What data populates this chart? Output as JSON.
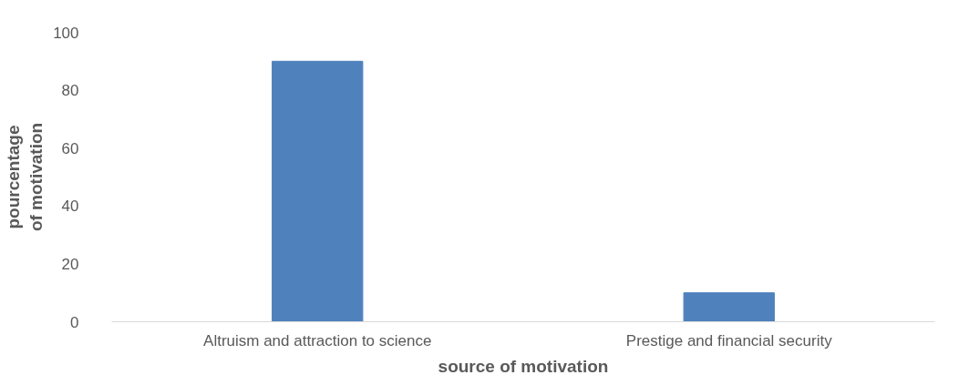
{
  "chart_data": {
    "type": "bar",
    "xlabel": "source of motivation",
    "ylabel": "pourcentage\nof motivation",
    "categories": [
      "Altruism and attraction to science",
      "Prestige and financial security"
    ],
    "series": [
      {
        "color": "#4f81bd",
        "values": [
          90,
          10
        ]
      }
    ],
    "ylim": [
      0,
      100
    ],
    "yticks": [
      0,
      20,
      40,
      60,
      80,
      100
    ],
    "grid": false
  }
}
